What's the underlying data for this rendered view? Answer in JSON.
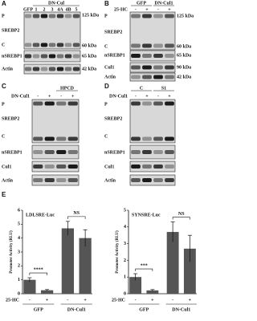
{
  "panels": [
    {
      "label": "A",
      "header": "DN-Cul",
      "lanes": [
        "GFP",
        "1",
        "2",
        "3",
        "4A",
        "4B",
        "5"
      ],
      "rows": [
        "P",
        "SREBP2",
        "C",
        "nSREBP1",
        "Actin"
      ],
      "markers": [
        "125 kDa",
        "60 kDa",
        "65 kDa",
        "42 kDa"
      ]
    },
    {
      "label": "B",
      "groups": [
        "GFP",
        "DN-Cul1"
      ],
      "treatment": "25-HC",
      "treatment_lanes": [
        "-",
        "+",
        "-",
        "+"
      ],
      "rows": [
        "P",
        "SREBP2",
        "C",
        "nSREBP1",
        "Cul1",
        "Actin"
      ],
      "markers": [
        "125 kDa",
        "60 kDa",
        "65 kDa",
        "90 kDa",
        "42 kDa"
      ]
    },
    {
      "label": "C",
      "header": "HPCD",
      "treatment": "DN-Cul1",
      "treatment_lanes": [
        "-",
        "+",
        "-",
        "+"
      ],
      "rows": [
        "P",
        "SREBP2",
        "C",
        "nSREBP1",
        "Cul1",
        "Actin"
      ]
    },
    {
      "label": "D",
      "groups": [
        "C",
        "S1"
      ],
      "treatment": "DN-Cul1",
      "treatment_lanes": [
        "-",
        "+",
        "-",
        "+"
      ],
      "rows": [
        "P",
        "SREBP2",
        "C",
        "nSREBP1",
        "Cul1",
        "Actin"
      ]
    },
    {
      "label": "E"
    }
  ],
  "chart_data": [
    {
      "type": "bar",
      "title": "LDLSRE-Luc",
      "y_label": "Promoter Activity (RLU)",
      "x_row_label": "25-HC",
      "categories": [
        "-",
        "+",
        "-",
        "+"
      ],
      "groups": [
        "GFP",
        "DN-Cul1"
      ],
      "values": [
        1.0,
        0.25,
        4.7,
        4.0
      ],
      "errors": [
        0.15,
        0.05,
        0.5,
        0.6
      ],
      "color": "#555555",
      "ylim": [
        0,
        6
      ],
      "yticks": [
        0,
        1,
        2,
        3,
        4,
        5,
        6
      ],
      "annotations": [
        "****",
        "NS"
      ]
    },
    {
      "type": "bar",
      "title": "SYNSRE-Luc",
      "y_label": "Promoter Activity (RLU)",
      "x_row_label": "25-HC",
      "categories": [
        "-",
        "+",
        "-",
        "+"
      ],
      "groups": [
        "GFP",
        "DN-Cul1"
      ],
      "values": [
        1.0,
        0.2,
        3.7,
        2.7
      ],
      "errors": [
        0.2,
        0.05,
        0.6,
        0.8
      ],
      "color": "#555555",
      "ylim": [
        0,
        5
      ],
      "yticks": [
        0,
        1,
        2,
        3,
        4,
        5
      ],
      "annotations": [
        "***",
        "NS"
      ]
    }
  ]
}
